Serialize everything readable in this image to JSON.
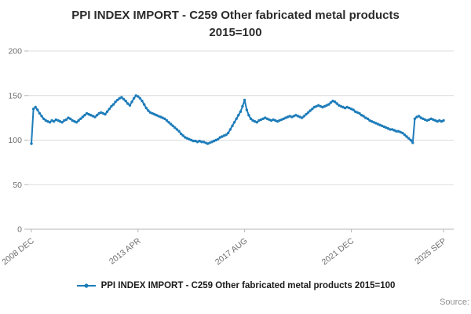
{
  "title": {
    "line1": "PPI INDEX IMPORT - C259 Other fabricated metal products",
    "line2": "2015=100"
  },
  "legend": {
    "label": "PPI INDEX IMPORT - C259 Other fabricated metal products 2015=100"
  },
  "source": {
    "label": "Source:"
  },
  "colors": {
    "line": "#1d7cba",
    "grid": "#dcdcdc",
    "axis": "#b5b5b5",
    "text": "#6e6e6e",
    "title": "#2b2b2b"
  },
  "chart_data": {
    "type": "line",
    "title": "PPI INDEX IMPORT - C259 Other fabricated metal products 2015=100",
    "frequency": "monthly",
    "x_start": "2008 DEC",
    "x_end": "2025 SEP",
    "x_tick_labels": [
      "2008 DEC",
      "2013 APR",
      "2017 AUG",
      "2021 DEC",
      "2025 SEP"
    ],
    "x_tick_indices": [
      0,
      52,
      104,
      156,
      201
    ],
    "y_ticks": [
      0,
      50,
      100,
      150,
      200
    ],
    "ylim": [
      0,
      200
    ],
    "grid": "horizontal",
    "legend_position": "bottom",
    "values": [
      96,
      135,
      137,
      134,
      130,
      127,
      124,
      122,
      121,
      120,
      122,
      121,
      123,
      122,
      121,
      120,
      122,
      123,
      125,
      124,
      122,
      121,
      120,
      122,
      124,
      126,
      128,
      130,
      129,
      128,
      127,
      126,
      128,
      130,
      131,
      130,
      129,
      132,
      135,
      138,
      140,
      143,
      145,
      147,
      148,
      146,
      144,
      141,
      139,
      143,
      147,
      150,
      149,
      147,
      144,
      140,
      136,
      133,
      131,
      130,
      129,
      128,
      127,
      126,
      125,
      124,
      122,
      120,
      118,
      116,
      114,
      112,
      110,
      107,
      105,
      103,
      102,
      101,
      100,
      99,
      99,
      98,
      99,
      98,
      98,
      97,
      96,
      97,
      98,
      99,
      100,
      101,
      103,
      104,
      105,
      106,
      108,
      112,
      116,
      120,
      124,
      128,
      132,
      138,
      145,
      134,
      128,
      124,
      122,
      121,
      120,
      122,
      123,
      124,
      125,
      124,
      123,
      122,
      123,
      122,
      121,
      122,
      123,
      124,
      125,
      126,
      127,
      126,
      127,
      128,
      127,
      126,
      125,
      127,
      129,
      131,
      133,
      135,
      137,
      138,
      139,
      138,
      137,
      138,
      139,
      140,
      142,
      144,
      143,
      141,
      139,
      138,
      137,
      136,
      137,
      136,
      135,
      134,
      132,
      131,
      130,
      128,
      127,
      125,
      124,
      122,
      121,
      120,
      119,
      118,
      117,
      116,
      115,
      114,
      113,
      112,
      112,
      111,
      110,
      110,
      109,
      108,
      106,
      104,
      102,
      100,
      97,
      124,
      126,
      127,
      125,
      124,
      123,
      122,
      123,
      124,
      123,
      122,
      121,
      122,
      121,
      122
    ]
  }
}
